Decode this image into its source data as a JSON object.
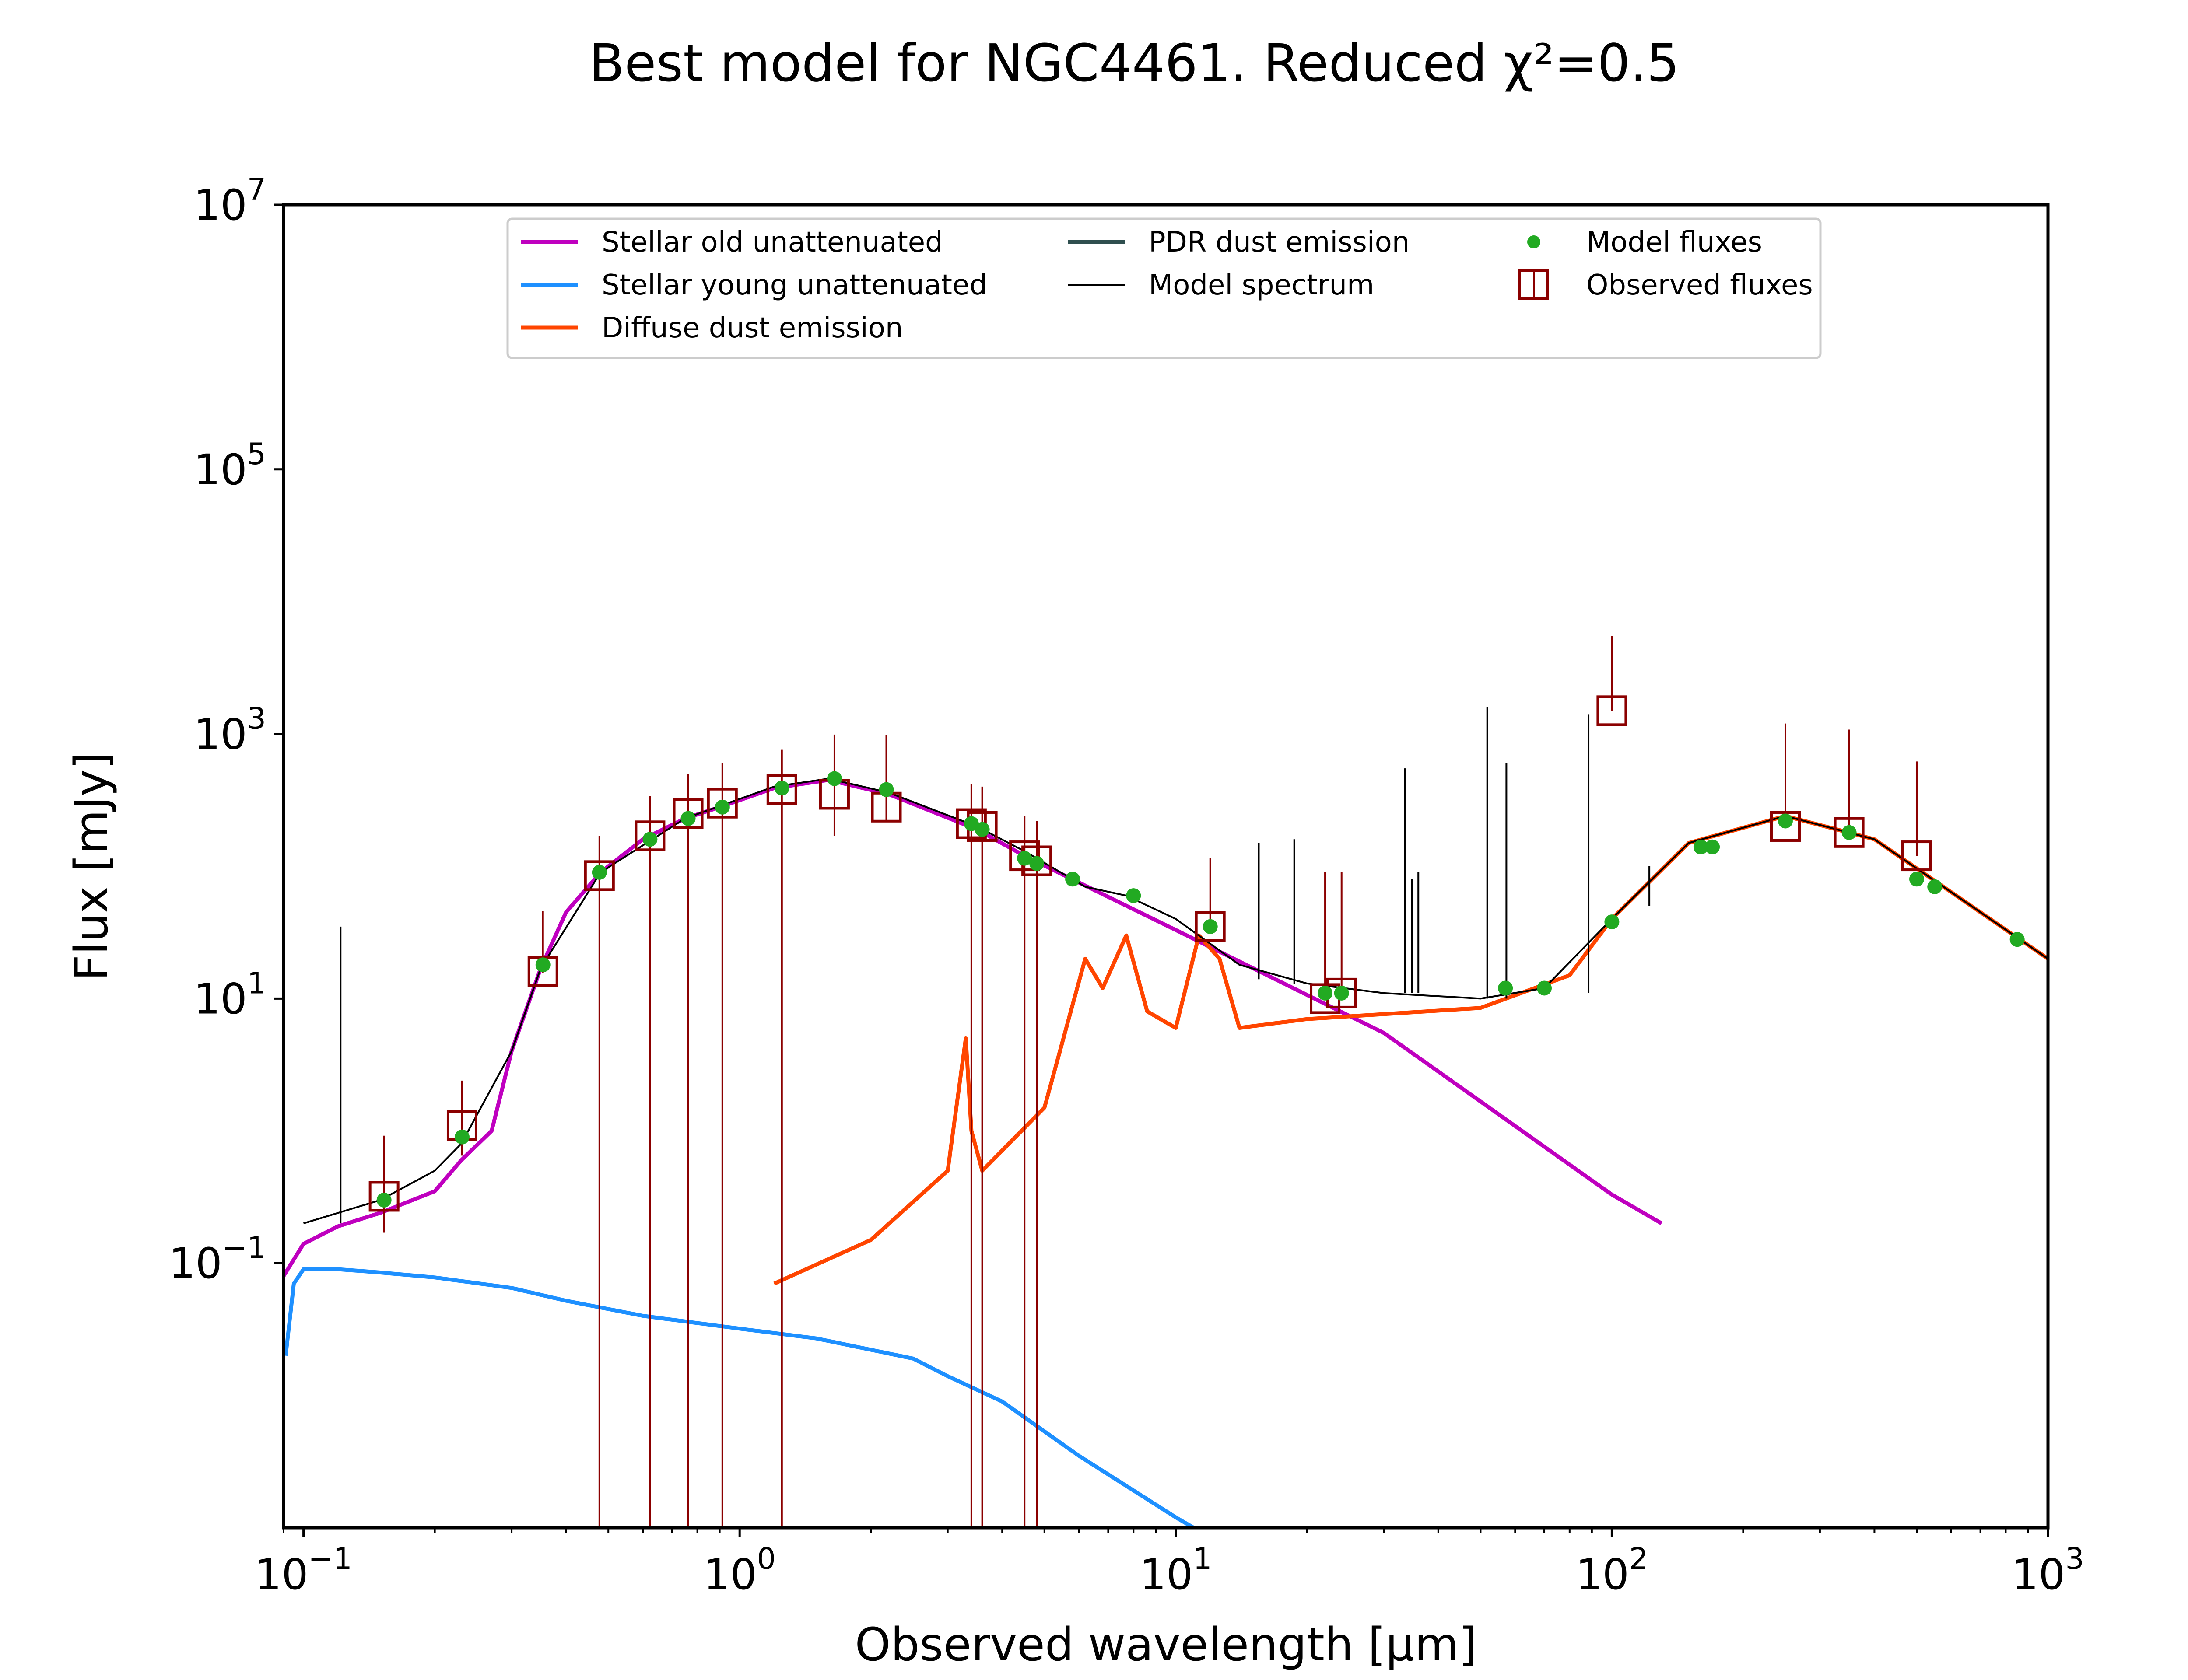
{
  "chart_data": {
    "type": "line",
    "title": "Best model for NGC4461. Reduced χ²=0.5",
    "xlabel": "Observed wavelength [μm]",
    "ylabel": "Flux [mJy]",
    "xscale": "log",
    "yscale": "log",
    "xlim": [
      0.09,
      1000
    ],
    "ylim": [
      0.001,
      10000000
    ],
    "x_ticks": [
      {
        "value": 0.1,
        "label": "10^−1"
      },
      {
        "value": 1,
        "label": "10^0"
      },
      {
        "value": 10,
        "label": "10^1"
      },
      {
        "value": 100,
        "label": "10^2"
      },
      {
        "value": 1000,
        "label": "10^3"
      }
    ],
    "y_ticks": [
      {
        "value": 0.1,
        "label": "10^−1"
      },
      {
        "value": 10,
        "label": "10^1"
      },
      {
        "value": 1000,
        "label": "10^3"
      },
      {
        "value": 100000,
        "label": "10^5"
      },
      {
        "value": 10000000,
        "label": "10^7"
      }
    ],
    "grid": false,
    "legend": {
      "placement": "top-center",
      "columns": [
        [
          "Stellar old unattenuated",
          "Stellar young unattenuated",
          "Diffuse dust emission"
        ],
        [
          "PDR dust emission",
          "Model spectrum"
        ],
        [
          "Model fluxes",
          "Observed fluxes"
        ]
      ]
    },
    "series": [
      {
        "name": "Stellar old unattenuated",
        "kind": "line",
        "color": "#bf00bf",
        "x": [
          0.09,
          0.1,
          0.12,
          0.15,
          0.2,
          0.23,
          0.27,
          0.3,
          0.35,
          0.4,
          0.48,
          0.6,
          0.75,
          0.9,
          1.2,
          1.6,
          2.2,
          3.5,
          4.5,
          10,
          30,
          100,
          130
        ],
        "y": [
          0.08,
          0.14,
          0.19,
          0.24,
          0.35,
          0.6,
          1.0,
          4,
          17,
          45,
          90,
          160,
          230,
          280,
          390,
          450,
          350,
          190,
          120,
          33,
          5.5,
          0.33,
          0.2
        ]
      },
      {
        "name": "Stellar young unattenuated",
        "kind": "line",
        "color": "#1e90ff",
        "x": [
          0.091,
          0.095,
          0.1,
          0.12,
          0.15,
          0.2,
          0.3,
          0.4,
          0.6,
          1,
          1.5,
          2.5,
          3,
          4,
          6,
          10,
          11
        ],
        "y": [
          0.02,
          0.07,
          0.09,
          0.09,
          0.085,
          0.078,
          0.065,
          0.052,
          0.04,
          0.032,
          0.027,
          0.019,
          0.014,
          0.009,
          0.0035,
          0.0012,
          0.001
        ]
      },
      {
        "name": "Diffuse dust emission",
        "kind": "line",
        "color": "#ff4500",
        "x": [
          1.2,
          2,
          3,
          3.3,
          3.4,
          3.6,
          5,
          6.2,
          6.8,
          7.7,
          8.6,
          10,
          11.3,
          12.6,
          14,
          20,
          50,
          80,
          100,
          150,
          250,
          400,
          1000
        ],
        "y": [
          0.07,
          0.15,
          0.5,
          5,
          1,
          0.5,
          1.5,
          20,
          12,
          30,
          8,
          6,
          30,
          20,
          6,
          7,
          8.5,
          15,
          40,
          150,
          240,
          160,
          20
        ]
      },
      {
        "name": "Model spectrum",
        "kind": "line",
        "color": "#000000",
        "x": [
          0.1,
          0.15,
          0.2,
          0.23,
          0.3,
          0.35,
          0.48,
          0.75,
          1.2,
          1.6,
          2.2,
          3.5,
          4.5,
          6.2,
          7.7,
          10,
          14,
          20,
          30,
          50,
          70,
          100,
          150,
          250,
          400,
          1000
        ],
        "y": [
          0.2,
          0.3,
          0.5,
          0.8,
          4,
          17,
          90,
          230,
          400,
          460,
          360,
          200,
          130,
          70,
          60,
          40,
          18,
          13,
          11,
          10,
          12,
          40,
          150,
          240,
          160,
          20
        ]
      }
    ],
    "model_fluxes": {
      "name": "Model fluxes",
      "color": "#22aa22",
      "x": [
        0.153,
        0.231,
        0.354,
        0.477,
        0.623,
        0.762,
        0.913,
        1.25,
        1.65,
        2.17,
        3.4,
        3.6,
        4.5,
        4.8,
        5.8,
        8,
        12,
        22,
        24,
        57,
        70,
        100,
        160,
        170,
        250,
        350,
        500,
        550,
        850
      ],
      "y": [
        0.3,
        0.9,
        18,
        90,
        160,
        230,
        280,
        390,
        460,
        380,
        210,
        190,
        115,
        105,
        80,
        60,
        35,
        11,
        11,
        12,
        12,
        38,
        140,
        140,
        220,
        180,
        80,
        70,
        28
      ]
    },
    "observed_fluxes": {
      "name": "Observed fluxes",
      "color": "#8b0000",
      "x": [
        0.153,
        0.231,
        0.354,
        0.477,
        0.623,
        0.762,
        0.913,
        1.25,
        1.65,
        2.17,
        3.4,
        3.6,
        4.5,
        4.8,
        12,
        22,
        24,
        100,
        250,
        350,
        500
      ],
      "y": [
        0.32,
        1.1,
        16,
        85,
        170,
        250,
        300,
        380,
        350,
        280,
        210,
        200,
        120,
        110,
        35,
        10,
        11,
        1500,
        200,
        180,
        120
      ],
      "yerr_low": [
        0.15,
        0.45,
        0.45,
        85,
        170,
        250,
        300,
        380,
        180,
        65,
        210,
        200,
        120,
        110,
        2,
        0.001,
        0.001,
        0.001,
        0.001,
        0.001,
        0.001
      ],
      "yerr_high": [
        0.6,
        1.3,
        30,
        85,
        170,
        250,
        300,
        380,
        640,
        700,
        210,
        200,
        120,
        110,
        80,
        80,
        80,
        4000,
        1000,
        900,
        500
      ]
    },
    "emission_lines": {
      "name": "Model spectrum",
      "color": "#000000",
      "x": [
        0.1216,
        15.5,
        18.7,
        33.5,
        34.8,
        36,
        51.8,
        57.3,
        88.4,
        121.9,
        157.7
      ],
      "base": [
        0.2,
        14,
        13,
        11,
        11,
        11,
        10,
        10,
        11,
        50,
        140
      ],
      "peak": [
        35,
        150,
        160,
        550,
        80,
        90,
        1600,
        600,
        1400,
        100,
        160
      ]
    }
  }
}
